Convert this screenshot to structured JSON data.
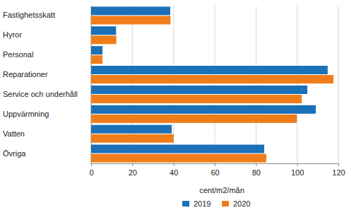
{
  "chart_data": {
    "type": "bar",
    "orientation": "horizontal",
    "categories": [
      "Fastighetsskatt",
      "Hyror",
      "Personal",
      "Reparationer",
      "Service och underhåll",
      "Uppvärmning",
      "Vatten",
      "Övriga"
    ],
    "series": [
      {
        "name": "2019",
        "color": "#1a71b8",
        "values": [
          38.4,
          12.1,
          5.5,
          114.8,
          104.9,
          109.0,
          39.1,
          84.0
        ]
      },
      {
        "name": "2020",
        "color": "#f07d1a",
        "values": [
          38.5,
          12.2,
          5.5,
          117.6,
          102.2,
          99.8,
          40.1,
          85.0
        ]
      }
    ],
    "x_label": "cent/m2/mån",
    "xlim": [
      0,
      120
    ],
    "xticks": [
      0,
      20,
      40,
      60,
      80,
      100,
      120
    ],
    "grid": true,
    "legend": "bottom"
  }
}
